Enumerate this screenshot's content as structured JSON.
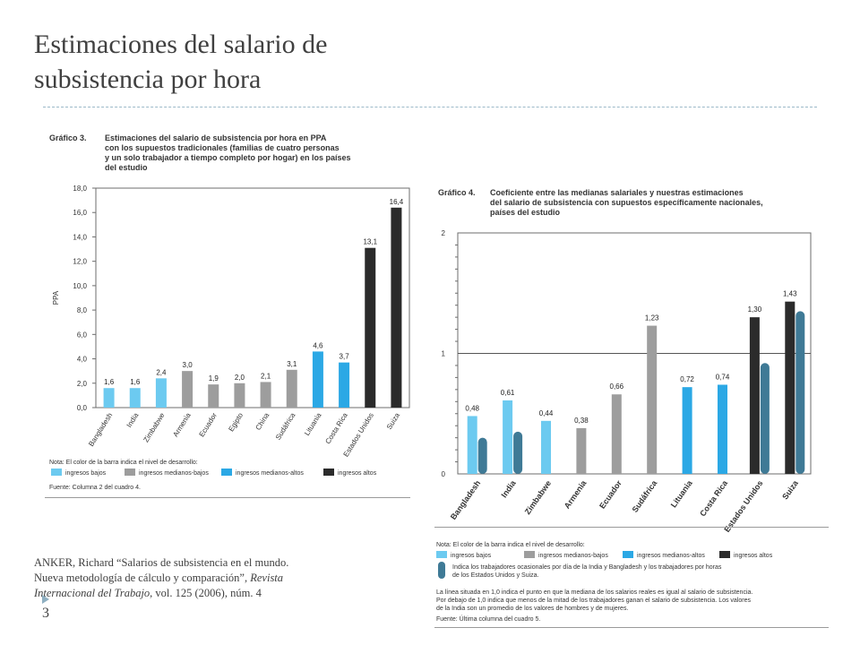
{
  "slide": {
    "title_line1": "Estimaciones del salario de",
    "title_line2": "subsistencia por hora",
    "citation": {
      "line1": "ANKER, Richard “Salarios de subsistencia en el mundo.",
      "line2": "Nueva metodología de cálculo y comparación”, ",
      "journal1": "Revista",
      "journal2": "Internacional del Trabajo,",
      "rest": " vol. 125 (2006), núm. 4"
    },
    "page_number": "3"
  },
  "chart_data": [
    {
      "type": "bar",
      "figure_label": "Gráfico 3.",
      "title_lines": [
        "Estimaciones del salario de subsistencia por hora en PPA",
        "con los supuestos tradicionales (familias de cuatro personas",
        "y un solo trabajador a tiempo completo por hogar) en los países",
        "del estudio"
      ],
      "ylabel": "PPA",
      "ylim": [
        0,
        18
      ],
      "yticks": [
        "0,0",
        "2,0",
        "4,0",
        "6,0",
        "8,0",
        "10,0",
        "12,0",
        "14,0",
        "16,0",
        "18,0"
      ],
      "categories": [
        "Bangladesh",
        "India",
        "Zimbabwe",
        "Armenia",
        "Ecuador",
        "Egipto",
        "China",
        "Sudáfrica",
        "Lituania",
        "Costa Rica",
        "Estados Unidos",
        "Suiza"
      ],
      "values": [
        1.6,
        1.6,
        2.4,
        3.0,
        1.9,
        2.0,
        2.1,
        3.1,
        4.6,
        3.7,
        13.1,
        16.4
      ],
      "value_labels": [
        "1,6",
        "1,6",
        "2,4",
        "3,0",
        "1,9",
        "2,0",
        "2,1",
        "3,1",
        "4,6",
        "3,7",
        "13,1",
        "16,4"
      ],
      "levels": [
        0,
        0,
        0,
        1,
        1,
        1,
        1,
        1,
        2,
        2,
        3,
        3
      ],
      "grid": false,
      "legend_position": "bottom",
      "note": "Nota: El color de la barra indica el nivel de desarrollo:",
      "legend": [
        {
          "label": "ingresos bajos",
          "color": "#6ccaf0"
        },
        {
          "label": "ingresos medianos-bajos",
          "color": "#9d9d9d"
        },
        {
          "label": "ingresos medianos-altos",
          "color": "#2ba8e5"
        },
        {
          "label": "ingresos altos",
          "color": "#2b2b2b"
        }
      ],
      "source": "Fuente: Columna 2 del cuadro 4."
    },
    {
      "type": "bar",
      "figure_label": "Gráfico 4.",
      "title_lines": [
        "Coeficiente entre las medianas salariales y nuestras estimaciones",
        "del salario de subsistencia con supuestos específicamente nacionales,",
        "países del estudio"
      ],
      "ylim": [
        0,
        2
      ],
      "yticks": [
        "0",
        "1",
        "2"
      ],
      "reference_line": 1,
      "categories": [
        "Bangladesh",
        "India",
        "Zimbabwe",
        "Armenia",
        "Ecuador",
        "Sudáfrica",
        "Lituania",
        "Costa Rica",
        "Estados Unidos",
        "Suiza"
      ],
      "values": [
        0.48,
        0.61,
        0.44,
        0.38,
        0.66,
        1.23,
        0.72,
        0.74,
        1.3,
        1.43
      ],
      "value_labels": [
        "0,48",
        "0,61",
        "0,44",
        "0,38",
        "0,66",
        "1,23",
        "0,72",
        "0,74",
        "1,30",
        "1,43"
      ],
      "levels": [
        0,
        0,
        0,
        1,
        1,
        1,
        2,
        2,
        3,
        3
      ],
      "secondary_values": [
        0.3,
        0.35,
        null,
        null,
        null,
        null,
        null,
        null,
        0.92,
        1.35
      ],
      "secondary_color": "#3f7a96",
      "grid": false,
      "legend_position": "bottom",
      "note": "Nota: El color de la barra indica el nivel de desarrollo:",
      "legend": [
        {
          "label": "ingresos bajos",
          "color": "#6ccaf0"
        },
        {
          "label": "ingresos medianos-bajos",
          "color": "#9d9d9d"
        },
        {
          "label": "ingresos medianos-altos",
          "color": "#2ba8e5"
        },
        {
          "label": "ingresos altos",
          "color": "#2b2b2b"
        }
      ],
      "secondary_legend_lines": [
        "Indica los trabajadores ocasionales por día de la India y Bangladesh y los trabajadores por horas",
        "de los Estados Unidos y Suiza."
      ],
      "footnote_lines": [
        "La línea situada en 1,0 indica el punto en que la mediana de los salarios reales es igual al salario de subsistencia.",
        "Por debajo de 1,0 indica que menos de la mitad de los trabajadores ganan el salario de subsistencia. Los valores",
        "de la India son un promedio de los valores de hombres y de mujeres."
      ],
      "source": "Fuente: Última columna del cuadro 5."
    }
  ]
}
